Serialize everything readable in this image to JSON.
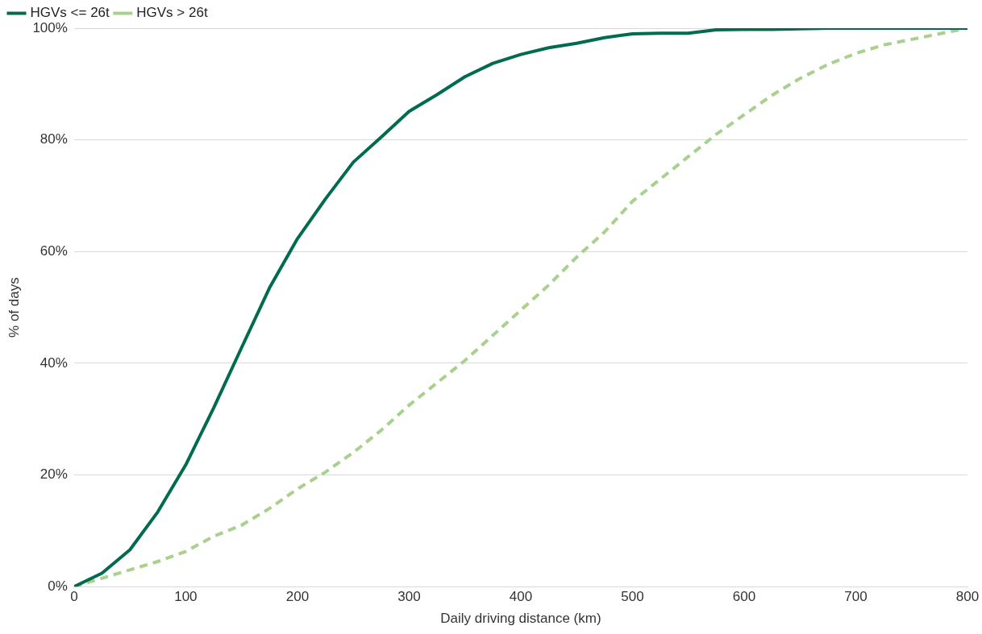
{
  "chart_data": {
    "type": "line",
    "xlabel": "Daily driving distance (km)",
    "ylabel": "% of days",
    "x": [
      0,
      25,
      50,
      75,
      100,
      125,
      150,
      175,
      200,
      225,
      250,
      275,
      300,
      325,
      350,
      375,
      400,
      425,
      450,
      475,
      500,
      525,
      550,
      575,
      600,
      625,
      650,
      675,
      700,
      725,
      750,
      775,
      800
    ],
    "series": [
      {
        "name": "HGVs <= 26t",
        "color": "#006b4f",
        "line_style": "solid",
        "values": [
          0,
          2.4,
          6.6,
          13.4,
          21.8,
          32,
          42.8,
          53.5,
          62.3,
          69.4,
          76,
          80.5,
          85.1,
          88.1,
          91.3,
          93.7,
          95.3,
          96.5,
          97.3,
          98.3,
          99,
          99.1,
          99.1,
          99.7,
          99.8,
          99.8,
          99.9,
          100,
          100,
          100,
          100,
          100,
          100
        ]
      },
      {
        "name": "HGVs > 26t",
        "color": "#a9d18e",
        "line_style": "dashed",
        "values": [
          0,
          1.5,
          3,
          4.5,
          6.3,
          9,
          11,
          14,
          17.5,
          20.5,
          24,
          28,
          32.5,
          36.5,
          40.5,
          45,
          49.5,
          54,
          59,
          63.5,
          69,
          73,
          77,
          81,
          84.5,
          88,
          91,
          93.5,
          95.5,
          97,
          98,
          99,
          100
        ]
      }
    ],
    "xlim": [
      0,
      800
    ],
    "xticks": [
      0,
      100,
      200,
      300,
      400,
      500,
      600,
      700,
      800
    ],
    "ylim": [
      0,
      100
    ],
    "yticks": [
      {
        "value": 0,
        "label": "0%"
      },
      {
        "value": 20,
        "label": "20%"
      },
      {
        "value": 40,
        "label": "40%"
      },
      {
        "value": 60,
        "label": "60%"
      },
      {
        "value": 80,
        "label": "80%"
      },
      {
        "value": 100,
        "label": "100%"
      }
    ],
    "grid": "y",
    "legend": "top left",
    "marker": "none"
  }
}
